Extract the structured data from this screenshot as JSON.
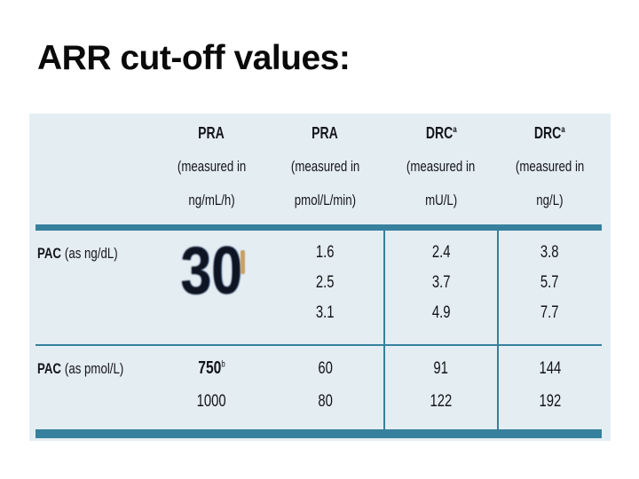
{
  "slide": {
    "title": "ARR cut-off values:"
  },
  "table": {
    "header": {
      "columns": [
        {
          "name": "PRA",
          "sup": "",
          "measured": "(measured in",
          "unit": "ng/mL/h)"
        },
        {
          "name": "PRA",
          "sup": "",
          "measured": "(measured in",
          "unit": "pmol/L/min)"
        },
        {
          "name": "DRC",
          "sup": "a",
          "measured": "(measured in",
          "unit": "mU/L)"
        },
        {
          "name": "DRC",
          "sup": "a",
          "measured": "(measured in",
          "unit": "ng/L)"
        }
      ]
    },
    "rows": [
      {
        "label": "PAC",
        "label_unit": "(as ng/dL)",
        "pra_ng_big": "30",
        "pra_pmol": [
          "1.6",
          "2.5",
          "3.1"
        ],
        "drc_mu": [
          "2.4",
          "3.7",
          "4.9"
        ],
        "drc_ng": [
          "3.8",
          "5.7",
          "7.7"
        ]
      },
      {
        "label": "PAC",
        "label_unit": "(as pmol/L)",
        "pra_ng": [
          "750",
          "1000"
        ],
        "pra_ng_sup": "b",
        "pra_pmol": [
          "60",
          "80"
        ],
        "drc_mu": [
          "91",
          "122"
        ],
        "drc_ng": [
          "144",
          "192"
        ]
      }
    ]
  },
  "colors": {
    "accent_teal": "#36809d",
    "panel_background": "#e4edf2",
    "highlight_mark_tan": "#c7a066"
  }
}
